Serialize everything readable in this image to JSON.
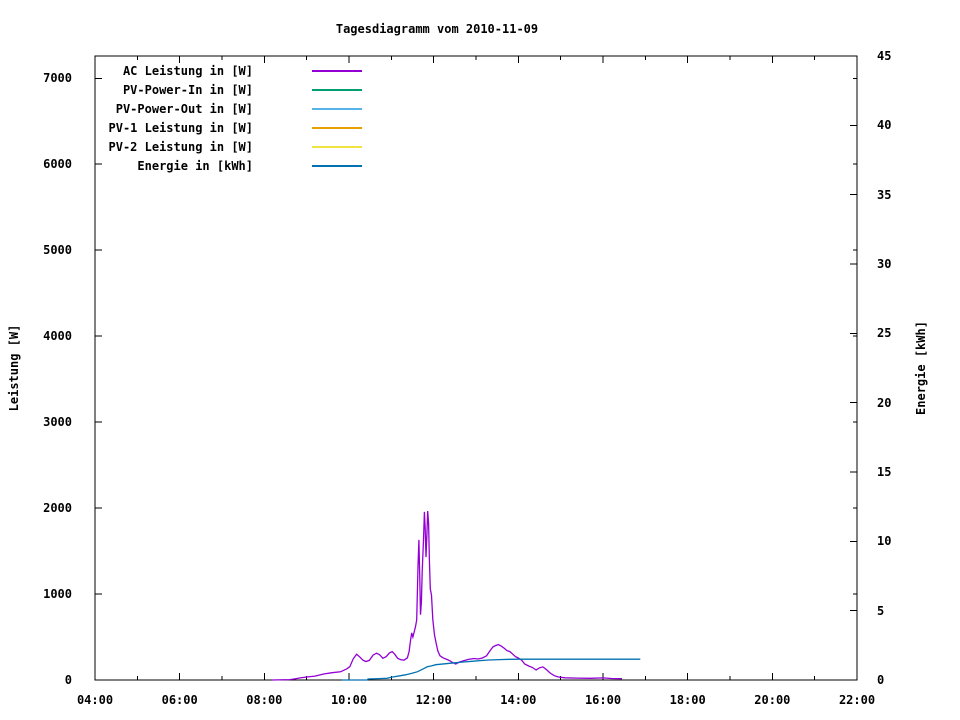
{
  "title": "Tagesdiagramm vom 2010-11-09",
  "chart_data": {
    "type": "line",
    "title": "Tagesdiagramm vom 2010-11-09",
    "grid": false,
    "legend_position": "top-left-inside",
    "x": {
      "label": "",
      "range_hours": [
        4,
        22
      ],
      "major_tick_labels": [
        "04:00",
        "06:00",
        "08:00",
        "10:00",
        "12:00",
        "14:00",
        "16:00",
        "18:00",
        "20:00",
        "22:00"
      ],
      "major_step_hours": 2,
      "minor_step_hours": 1
    },
    "y_left": {
      "label": "Leistung [W]",
      "range": [
        0,
        7259
      ],
      "ticks": [
        0,
        1000,
        2000,
        3000,
        4000,
        5000,
        6000,
        7000
      ]
    },
    "y_right": {
      "label": "Energie [kWh]",
      "range": [
        0,
        45
      ],
      "ticks": [
        0,
        5,
        10,
        15,
        20,
        25,
        30,
        35,
        40,
        45
      ]
    },
    "series": [
      {
        "name": "AC Leistung in [W]",
        "color": "#9400d3",
        "axis": "left",
        "points": [
          [
            8.18,
            0
          ],
          [
            8.6,
            5
          ],
          [
            8.7,
            12
          ],
          [
            8.85,
            25
          ],
          [
            9.0,
            35
          ],
          [
            9.2,
            45
          ],
          [
            9.4,
            70
          ],
          [
            9.6,
            85
          ],
          [
            9.8,
            95
          ],
          [
            9.95,
            130
          ],
          [
            10.02,
            155
          ],
          [
            10.1,
            245
          ],
          [
            10.18,
            300
          ],
          [
            10.25,
            270
          ],
          [
            10.33,
            230
          ],
          [
            10.4,
            215
          ],
          [
            10.48,
            228
          ],
          [
            10.57,
            290
          ],
          [
            10.65,
            312
          ],
          [
            10.72,
            295
          ],
          [
            10.8,
            252
          ],
          [
            10.88,
            272
          ],
          [
            10.95,
            312
          ],
          [
            11.02,
            330
          ],
          [
            11.08,
            300
          ],
          [
            11.15,
            252
          ],
          [
            11.22,
            237
          ],
          [
            11.3,
            230
          ],
          [
            11.38,
            258
          ],
          [
            11.42,
            330
          ],
          [
            11.45,
            450
          ],
          [
            11.48,
            548
          ],
          [
            11.51,
            500
          ],
          [
            11.54,
            560
          ],
          [
            11.57,
            620
          ],
          [
            11.6,
            700
          ],
          [
            11.63,
            1320
          ],
          [
            11.65,
            1630
          ],
          [
            11.67,
            1230
          ],
          [
            11.69,
            760
          ],
          [
            11.71,
            910
          ],
          [
            11.73,
            1260
          ],
          [
            11.76,
            1630
          ],
          [
            11.78,
            1955
          ],
          [
            11.8,
            1760
          ],
          [
            11.82,
            1430
          ],
          [
            11.84,
            1690
          ],
          [
            11.86,
            1966
          ],
          [
            11.88,
            1820
          ],
          [
            11.9,
            1390
          ],
          [
            11.92,
            1060
          ],
          [
            11.95,
            985
          ],
          [
            11.98,
            705
          ],
          [
            12.02,
            525
          ],
          [
            12.06,
            425
          ],
          [
            12.1,
            335
          ],
          [
            12.15,
            282
          ],
          [
            12.22,
            258
          ],
          [
            12.35,
            232
          ],
          [
            12.45,
            202
          ],
          [
            12.52,
            186
          ],
          [
            12.62,
            212
          ],
          [
            12.72,
            226
          ],
          [
            12.82,
            240
          ],
          [
            12.95,
            250
          ],
          [
            13.05,
            244
          ],
          [
            13.15,
            256
          ],
          [
            13.25,
            282
          ],
          [
            13.32,
            332
          ],
          [
            13.4,
            385
          ],
          [
            13.47,
            402
          ],
          [
            13.53,
            412
          ],
          [
            13.6,
            393
          ],
          [
            13.67,
            368
          ],
          [
            13.73,
            342
          ],
          [
            13.8,
            330
          ],
          [
            13.87,
            300
          ],
          [
            13.93,
            272
          ],
          [
            14.0,
            256
          ],
          [
            14.08,
            230
          ],
          [
            14.15,
            186
          ],
          [
            14.25,
            162
          ],
          [
            14.33,
            146
          ],
          [
            14.42,
            116
          ],
          [
            14.5,
            142
          ],
          [
            14.58,
            152
          ],
          [
            14.66,
            122
          ],
          [
            14.75,
            82
          ],
          [
            14.85,
            50
          ],
          [
            14.95,
            35
          ],
          [
            15.1,
            26
          ],
          [
            15.4,
            22
          ],
          [
            15.7,
            20
          ],
          [
            16.0,
            24
          ],
          [
            16.2,
            18
          ],
          [
            16.45,
            15
          ]
        ]
      },
      {
        "name": "PV-Power-In in [W]",
        "color": "#009e73",
        "axis": "left",
        "points": []
      },
      {
        "name": "PV-Power-Out in [W]",
        "color": "#56b4e9",
        "axis": "left",
        "points": []
      },
      {
        "name": "PV-1 Leistung in [W]",
        "color": "#e69f00",
        "axis": "left",
        "points": []
      },
      {
        "name": "PV-2 Leistung in [W]",
        "color": "#f0e442",
        "axis": "left",
        "points": []
      },
      {
        "name": "Energie in [kWh]",
        "color": "#0072b2",
        "axis": "right",
        "points": [
          [
            9.83,
            0
          ],
          [
            10.43,
            0
          ],
          [
            10.45,
            0.07
          ],
          [
            10.9,
            0.12
          ],
          [
            11.0,
            0.2
          ],
          [
            11.2,
            0.3
          ],
          [
            11.35,
            0.38
          ],
          [
            11.5,
            0.5
          ],
          [
            11.62,
            0.6
          ],
          [
            11.75,
            0.8
          ],
          [
            11.85,
            0.95
          ],
          [
            11.95,
            1.02
          ],
          [
            12.05,
            1.1
          ],
          [
            12.26,
            1.17
          ],
          [
            12.5,
            1.24
          ],
          [
            12.7,
            1.3
          ],
          [
            12.9,
            1.35
          ],
          [
            13.1,
            1.4
          ],
          [
            13.3,
            1.44
          ],
          [
            13.55,
            1.47
          ],
          [
            13.8,
            1.49
          ],
          [
            14.0,
            1.5
          ],
          [
            16.88,
            1.5
          ]
        ]
      }
    ]
  },
  "legend": {
    "entries": [
      {
        "label": "AC Leistung in [W]",
        "color": "#9400d3"
      },
      {
        "label": "PV-Power-In in [W]",
        "color": "#009e73"
      },
      {
        "label": "PV-Power-Out in [W]",
        "color": "#56b4e9"
      },
      {
        "label": "PV-1 Leistung in [W]",
        "color": "#e69f00"
      },
      {
        "label": "PV-2 Leistung in [W]",
        "color": "#f0e442"
      },
      {
        "label": "Energie in [kWh]",
        "color": "#0072b2"
      }
    ]
  },
  "colors": {
    "axis": "#000000",
    "background": "#ffffff"
  }
}
